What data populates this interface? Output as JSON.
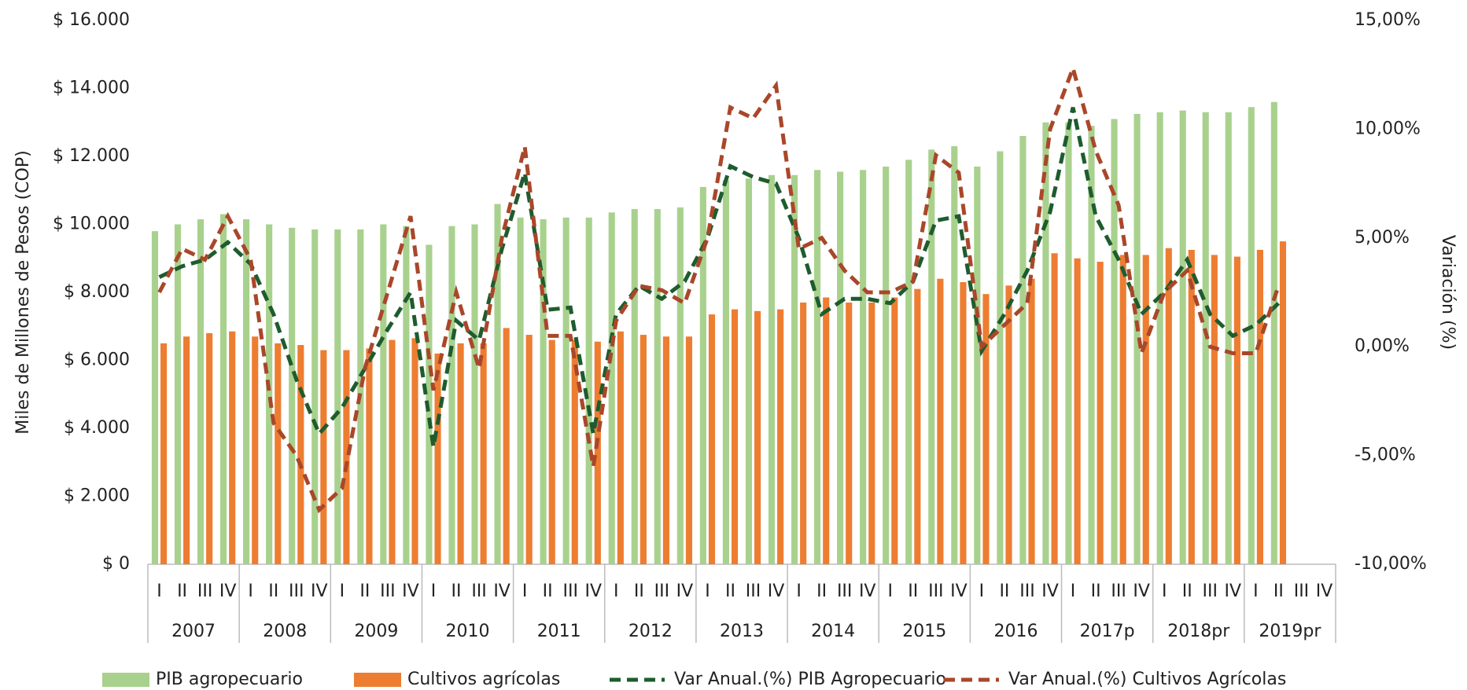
{
  "chart_data": {
    "type": "bar-line",
    "y_label": "Miles de Millones de Pesos (COP)",
    "y2_label": "Variación (%)",
    "categories": [
      "I",
      "II",
      "III",
      "IV",
      "I",
      "II",
      "III",
      "IV",
      "I",
      "II",
      "III",
      "IV",
      "I",
      "II",
      "III",
      "IV",
      "I",
      "II",
      "III",
      "IV",
      "I",
      "II",
      "III",
      "IV",
      "I",
      "II",
      "III",
      "IV",
      "I",
      "II",
      "III",
      "IV",
      "I",
      "II",
      "III",
      "IV",
      "I",
      "II",
      "III",
      "IV",
      "I",
      "II",
      "III",
      "IV",
      "I",
      "II",
      "III",
      "IV",
      "I",
      "II",
      "III",
      "IV"
    ],
    "years": [
      "2007",
      "2008",
      "2009",
      "2010",
      "2011",
      "2012",
      "2013",
      "2014",
      "2015",
      "2016",
      "2017p",
      "2018pr",
      "2019pr"
    ],
    "ylim": [
      0,
      16000
    ],
    "yticks": [
      {
        "value": 0,
        "label": "$ 0"
      },
      {
        "value": 2000,
        "label": "$ 2.000"
      },
      {
        "value": 4000,
        "label": "$ 4.000"
      },
      {
        "value": 6000,
        "label": "$ 6.000"
      },
      {
        "value": 8000,
        "label": "$ 8.000"
      },
      {
        "value": 10000,
        "label": "$ 10.000"
      },
      {
        "value": 12000,
        "label": "$ 12.000"
      },
      {
        "value": 14000,
        "label": "$ 14.000"
      },
      {
        "value": 16000,
        "label": "$ 16.000"
      }
    ],
    "y2lim": [
      -10,
      15
    ],
    "y2ticks": [
      {
        "value": -10,
        "label": "-10,00%"
      },
      {
        "value": -5,
        "label": "-5,00%"
      },
      {
        "value": 0,
        "label": "0,00%"
      },
      {
        "value": 5,
        "label": "5,00%"
      },
      {
        "value": 10,
        "label": "10,00%"
      },
      {
        "value": 15,
        "label": "15,00%"
      }
    ],
    "series": [
      {
        "name": "PIB agropecuario",
        "kind": "bar",
        "color": "#a9d18e",
        "values": [
          9800,
          10000,
          10150,
          10300,
          10150,
          10000,
          9900,
          9850,
          9850,
          9850,
          10000,
          9950,
          9400,
          9950,
          10000,
          10600,
          10200,
          10150,
          10200,
          10200,
          10350,
          10450,
          10450,
          10500,
          11100,
          11300,
          11350,
          11450,
          11450,
          11600,
          11550,
          11600,
          11700,
          11900,
          12200,
          12300,
          11700,
          12150,
          12600,
          13000,
          13000,
          12900,
          13100,
          13250,
          13300,
          13350,
          13300,
          13300,
          13450,
          13600,
          null,
          null
        ]
      },
      {
        "name": "Cultivos agrícolas",
        "kind": "bar",
        "color": "#ed7d31",
        "values": [
          6500,
          6700,
          6800,
          6850,
          6700,
          6500,
          6450,
          6300,
          6300,
          6350,
          6600,
          6650,
          6200,
          6500,
          6500,
          6950,
          6750,
          6600,
          6600,
          6550,
          6850,
          6750,
          6700,
          6700,
          7350,
          7500,
          7450,
          7500,
          7700,
          7850,
          7700,
          7700,
          7850,
          8100,
          8400,
          8300,
          7950,
          8200,
          8400,
          9150,
          9000,
          8900,
          9100,
          9100,
          9300,
          9250,
          9100,
          9050,
          9250,
          9500,
          null,
          null
        ]
      },
      {
        "name": "Var Anual.(%) PIB Agropecuario",
        "kind": "line",
        "axis": "y2",
        "color": "#1e5c2e",
        "values": [
          3.2,
          3.7,
          4.0,
          4.8,
          3.8,
          1.5,
          -1.5,
          -4.0,
          -2.8,
          -1.0,
          0.8,
          2.5,
          -4.6,
          1.2,
          0.3,
          4.5,
          8.0,
          1.7,
          1.8,
          -4.0,
          1.5,
          2.8,
          2.2,
          3.0,
          5.0,
          8.3,
          7.8,
          7.5,
          5.0,
          1.5,
          2.2,
          2.2,
          2.0,
          3.0,
          5.8,
          6.0,
          -0.2,
          1.5,
          3.5,
          6.2,
          11.0,
          6.0,
          4.0,
          1.5,
          2.5,
          4.0,
          1.5,
          0.5,
          1.0,
          2.0,
          null,
          null
        ]
      },
      {
        "name": "Var Anual.(%) Cultivos Agrícolas",
        "kind": "line",
        "axis": "y2",
        "color": "#a9472a",
        "values": [
          2.5,
          4.5,
          4.0,
          6.0,
          4.0,
          -3.5,
          -5.0,
          -7.5,
          -6.5,
          -1.0,
          2.5,
          6.0,
          -2.0,
          2.5,
          -1.0,
          5.0,
          9.2,
          0.5,
          0.5,
          -5.5,
          1.2,
          2.8,
          2.6,
          2.0,
          5.0,
          11.0,
          10.5,
          12.0,
          4.5,
          5.0,
          3.5,
          2.5,
          2.5,
          3.0,
          8.8,
          8.0,
          0.0,
          1.0,
          2.0,
          10.0,
          12.8,
          9.0,
          6.5,
          -0.3,
          2.5,
          3.5,
          0.0,
          -0.3,
          -0.3,
          2.8,
          null,
          null
        ]
      }
    ]
  }
}
